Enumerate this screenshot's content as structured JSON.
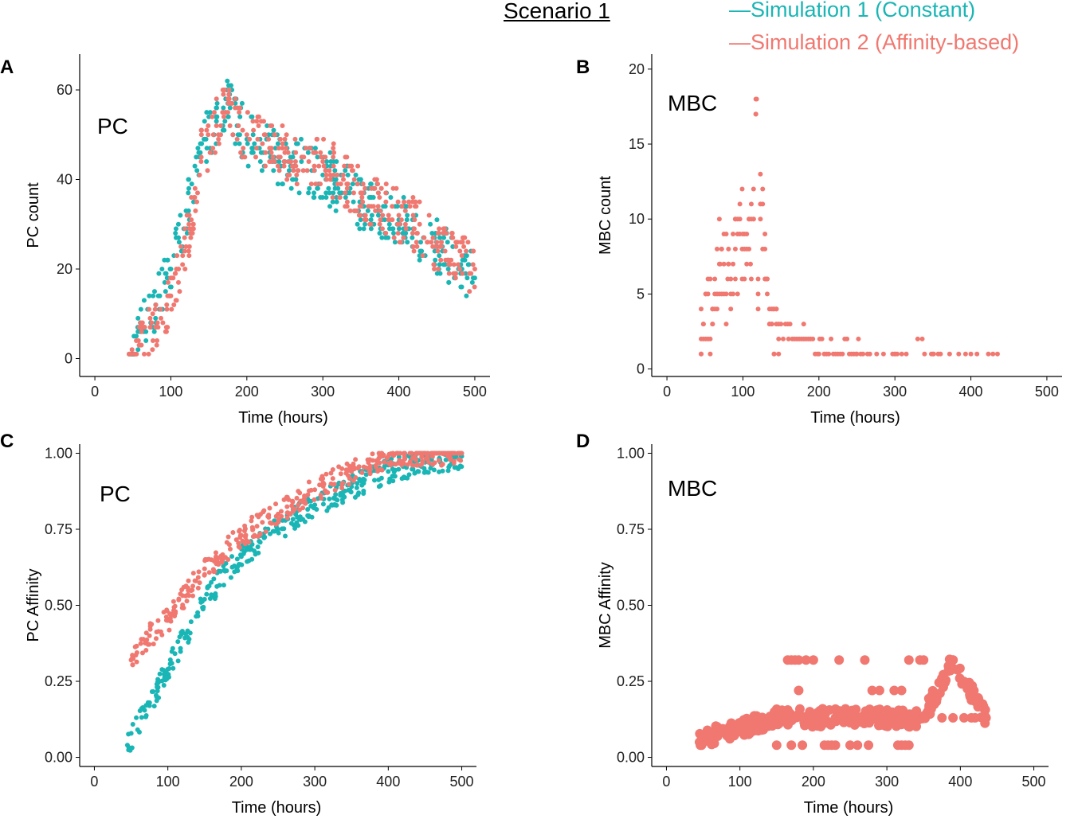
{
  "figure": {
    "title": "Scenario 1",
    "legend": [
      {
        "label": "—Simulation 1 (Constant)",
        "color": "#1AB5B5"
      },
      {
        "label": "—Simulation 2 (Affinity-based)",
        "color": "#F07870"
      }
    ],
    "colors": {
      "sim1": "#1AB5B5",
      "sim2": "#F07870"
    }
  },
  "chart_data": [
    {
      "panel": "A",
      "type": "scatter",
      "inset_label": "PC",
      "xlabel": "Time (hours)",
      "ylabel": "PC count",
      "xlim": [
        -20,
        520
      ],
      "ylim": [
        -4,
        68
      ],
      "xticks": [
        0,
        100,
        200,
        300,
        400,
        500
      ],
      "yticks": [
        0,
        20,
        40,
        60
      ],
      "series": [
        {
          "name": "Simulation 1 (Constant)",
          "color": "#1AB5B5",
          "shape": "rise-peak-decay",
          "x": [
            45,
            60,
            80,
            100,
            120,
            140,
            160,
            175,
            200,
            250,
            300,
            350,
            400,
            450,
            500
          ],
          "y": [
            1,
            6,
            12,
            20,
            33,
            48,
            53,
            57,
            49,
            44,
            41,
            35,
            31,
            25,
            18
          ]
        },
        {
          "name": "Simulation 2 (Affinity-based)",
          "color": "#F07870",
          "shape": "rise-peak-decay",
          "x": [
            45,
            60,
            80,
            100,
            120,
            140,
            160,
            175,
            200,
            250,
            300,
            350,
            400,
            450,
            500
          ],
          "y": [
            1,
            3,
            7,
            14,
            25,
            45,
            52,
            55,
            50,
            46,
            44,
            37,
            32,
            26,
            20
          ]
        }
      ]
    },
    {
      "panel": "B",
      "type": "scatter",
      "inset_label": "MBC",
      "xlabel": "Time (hours)",
      "ylabel": "MBC count",
      "xlim": [
        -20,
        520
      ],
      "ylim": [
        -0.5,
        21
      ],
      "xticks": [
        0,
        100,
        200,
        300,
        400,
        500
      ],
      "yticks": [
        0,
        5,
        10,
        15,
        20
      ],
      "series": [
        {
          "name": "Simulation 2 (Affinity-based)",
          "color": "#F07870",
          "shape": "burst-decay",
          "x": [
            45,
            60,
            70,
            80,
            90,
            100,
            110,
            118,
            130,
            140,
            160,
            180,
            200,
            250,
            300,
            350,
            400,
            435
          ],
          "y": [
            1,
            4,
            7,
            6,
            8,
            9,
            7,
            18,
            6,
            4,
            2,
            2,
            1,
            1,
            1,
            1,
            1,
            1
          ]
        }
      ]
    },
    {
      "panel": "C",
      "type": "scatter",
      "inset_label": "PC",
      "xlabel": "Time (hours)",
      "ylabel": "PC Affinity",
      "xlim": [
        -20,
        520
      ],
      "ylim": [
        -0.03,
        1.03
      ],
      "xticks": [
        0,
        100,
        200,
        300,
        400,
        500
      ],
      "yticks": [
        "0.00",
        "0.25",
        "0.50",
        "0.75",
        "1.00"
      ],
      "series": [
        {
          "name": "Simulation 1 (Constant)",
          "color": "#1AB5B5",
          "shape": "saturating",
          "x": [
            45,
            75,
            100,
            150,
            200,
            250,
            300,
            350,
            400,
            450,
            500
          ],
          "y": [
            0.04,
            0.17,
            0.29,
            0.52,
            0.66,
            0.75,
            0.83,
            0.89,
            0.94,
            0.97,
            0.99
          ]
        },
        {
          "name": "Simulation 2 (Affinity-based)",
          "color": "#F07870",
          "shape": "saturating",
          "x": [
            50,
            75,
            100,
            150,
            200,
            250,
            300,
            350,
            400,
            450,
            500
          ],
          "y": [
            0.32,
            0.4,
            0.45,
            0.62,
            0.73,
            0.8,
            0.88,
            0.94,
            0.99,
            1.0,
            1.0
          ]
        }
      ]
    },
    {
      "panel": "D",
      "type": "scatter",
      "inset_label": "MBC",
      "xlabel": "Time (hours)",
      "ylabel": "MBC Affinity",
      "xlim": [
        -20,
        520
      ],
      "ylim": [
        -0.03,
        1.03
      ],
      "xticks": [
        0,
        100,
        200,
        300,
        400,
        500
      ],
      "yticks": [
        "0.00",
        "0.25",
        "0.50",
        "0.75",
        "1.00"
      ],
      "series": [
        {
          "name": "Simulation 2 (Affinity-based)",
          "color": "#F07870",
          "shape": "low-plateau",
          "x": [
            45,
            60,
            80,
            100,
            120,
            150,
            200,
            250,
            300,
            350,
            390,
            435
          ],
          "y": [
            0.05,
            0.07,
            0.08,
            0.09,
            0.11,
            0.13,
            0.13,
            0.13,
            0.13,
            0.13,
            0.32,
            0.13
          ]
        }
      ]
    }
  ]
}
